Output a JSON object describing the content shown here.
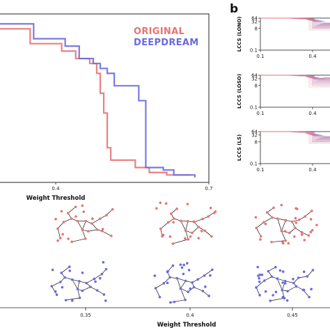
{
  "panel_b_letter": "b",
  "colors": {
    "original": "#e87373",
    "deepdream": "#6a6ae0"
  },
  "chart_data": [
    {
      "id": "main-step",
      "type": "line",
      "xlabel": "Weight Threshold",
      "xlim": [
        0.1,
        0.7
      ],
      "ylim": [
        0,
        68
      ],
      "x_ticks": [
        {
          "value": 0.4,
          "label": "0.4"
        },
        {
          "value": 0.7,
          "label": "0.7"
        }
      ],
      "legend": [
        "ORIGINAL",
        "DEEPDREAM"
      ],
      "series": [
        {
          "name": "ORIGINAL",
          "color": "#e87373",
          "x": [
            0.1,
            0.17,
            0.19,
            0.24,
            0.28,
            0.32,
            0.36,
            0.38,
            0.39,
            0.4,
            0.41,
            0.42,
            0.46,
            0.49,
            0.53,
            0.58,
            0.65
          ],
          "y": [
            62,
            62,
            56,
            56,
            53,
            50,
            48,
            44,
            36,
            28,
            14,
            9,
            9,
            6,
            4,
            3,
            3
          ]
        },
        {
          "name": "DEEPDREAM",
          "color": "#6a6ae0",
          "x": [
            0.1,
            0.16,
            0.2,
            0.25,
            0.29,
            0.33,
            0.37,
            0.39,
            0.41,
            0.43,
            0.48,
            0.5,
            0.52,
            0.57,
            0.6,
            0.66
          ],
          "y": [
            64,
            64,
            58,
            58,
            55,
            50,
            48,
            46,
            44,
            39,
            39,
            33,
            6,
            5,
            3,
            2
          ]
        }
      ]
    },
    {
      "id": "lono",
      "type": "line",
      "ylabel": "LCCS (LONO)",
      "xlim": [
        0.1,
        0.5
      ],
      "ylim": [
        0.1,
        64
      ],
      "yscale": "log",
      "y_ticks": [
        "64",
        "32",
        "8",
        "0.1"
      ],
      "x_ticks": [
        "0.1",
        "0.4"
      ]
    },
    {
      "id": "loso",
      "type": "line",
      "ylabel": "LCCS (LOSO)",
      "xlim": [
        0.1,
        0.5
      ],
      "ylim": [
        0.1,
        64
      ],
      "yscale": "log",
      "y_ticks": [
        "64",
        "32",
        "8",
        "0.1"
      ],
      "x_ticks": [
        "0.1",
        "0.4"
      ]
    },
    {
      "id": "ls",
      "type": "line",
      "ylabel": "LCCS (LS)",
      "xlim": [
        0.1,
        0.5
      ],
      "ylim": [
        0.1,
        64
      ],
      "yscale": "log",
      "y_ticks": [
        "64",
        "32",
        "8",
        "0.1"
      ],
      "x_ticks": [
        "0.1",
        "0.4"
      ]
    }
  ],
  "network_grid": {
    "xlabel": "Weight Threshold",
    "thresholds": [
      "0.35",
      "0.4",
      "0.45"
    ]
  }
}
